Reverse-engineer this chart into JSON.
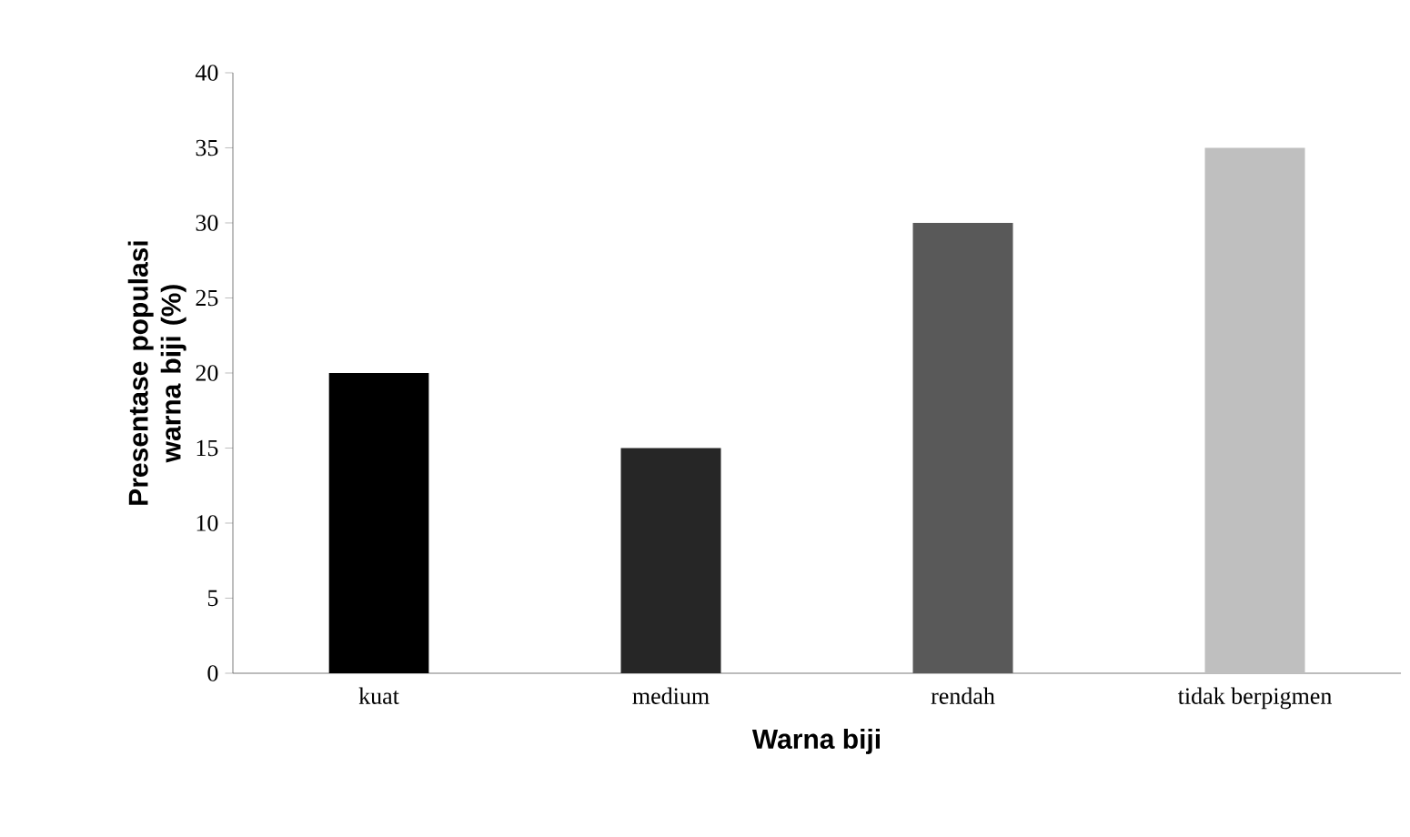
{
  "chart_data": {
    "type": "bar",
    "xlabel": "Warna biji",
    "ylabel": "Presentase populasi warna biji (%)",
    "categories": [
      "kuat",
      "medium",
      "rendah",
      "tidak berpigmen"
    ],
    "values": [
      20,
      15,
      30,
      35
    ],
    "colors": [
      "#000000",
      "#262626",
      "#595959",
      "#bfbfbf"
    ],
    "ylim": [
      0,
      40
    ],
    "yticks": [
      0,
      5,
      10,
      15,
      20,
      25,
      30,
      35,
      40
    ]
  }
}
